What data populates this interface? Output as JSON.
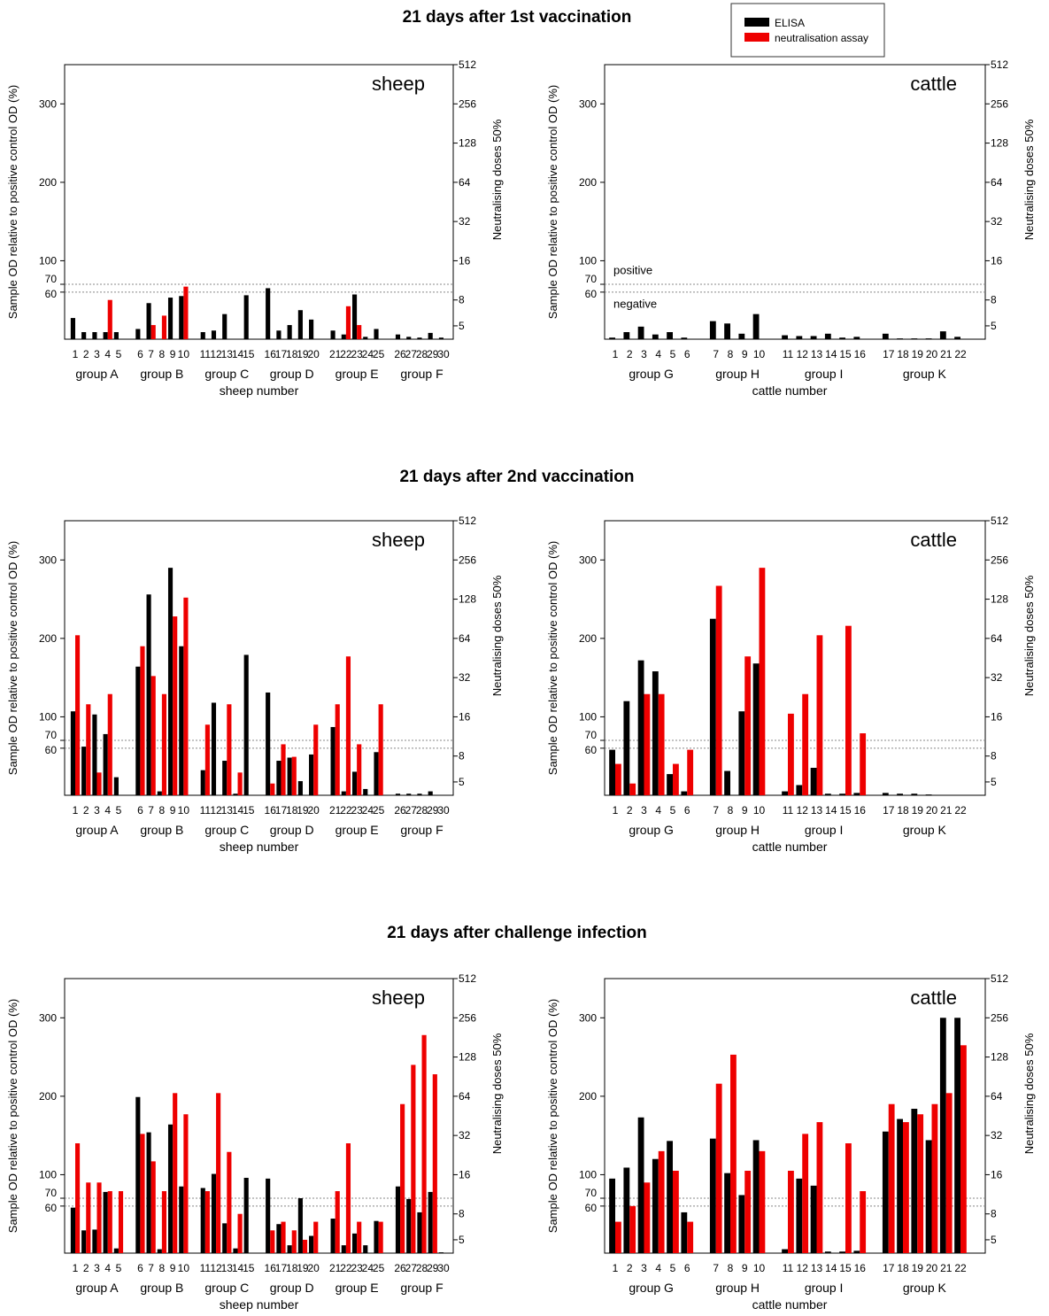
{
  "legend": {
    "items": [
      {
        "label": "ELISA",
        "color": "#000000"
      },
      {
        "label": "neutralisation assay",
        "color": "#ee0000"
      }
    ]
  },
  "rows": [
    {
      "title": "21 days after 1st vaccination"
    },
    {
      "title": "21 days after 2nd vaccination"
    },
    {
      "title": "21 days after challenge infection"
    }
  ],
  "axes": {
    "left_label": "Sample OD relative to positive control OD  (%)",
    "right_label": "Neutralising doses 50%",
    "left_ticks": [
      60,
      70,
      100,
      200,
      300
    ],
    "right_ticks": [
      "5",
      "8",
      "16",
      "32",
      "64",
      "128",
      "256",
      "512"
    ],
    "right_tick_values": [
      17,
      50,
      100,
      150,
      200,
      250,
      300,
      350
    ],
    "ylim": [
      0,
      350
    ],
    "dotted_lines": [
      60,
      70
    ],
    "zone_labels": {
      "positive": "positive",
      "negative": "negative"
    }
  },
  "sheep": {
    "animal": "sheep",
    "xlabel": "sheep number",
    "groups": [
      {
        "label": "group A",
        "animals": [
          1,
          2,
          3,
          4,
          5
        ]
      },
      {
        "label": "group B",
        "animals": [
          6,
          7,
          8,
          9,
          10
        ]
      },
      {
        "label": "group C",
        "animals": [
          11,
          12,
          13,
          14,
          15
        ]
      },
      {
        "label": "group D",
        "animals": [
          16,
          17,
          18,
          19,
          20
        ]
      },
      {
        "label": "group E",
        "animals": [
          21,
          22,
          23,
          24,
          25
        ]
      },
      {
        "label": "group F",
        "animals": [
          26,
          27,
          28,
          29,
          30
        ]
      }
    ]
  },
  "cattle": {
    "animal": "cattle",
    "xlabel": "cattle number",
    "groups": [
      {
        "label": "group G",
        "animals": [
          1,
          2,
          3,
          4,
          5,
          6
        ]
      },
      {
        "label": "group H",
        "animals": [
          7,
          8,
          9,
          10
        ]
      },
      {
        "label": "group I",
        "animals": [
          11,
          12,
          13,
          14,
          15,
          16
        ]
      },
      {
        "label": "group K",
        "animals": [
          17,
          18,
          19,
          20,
          21,
          22
        ]
      }
    ]
  },
  "chart_data": [
    {
      "type": "bar",
      "row": 0,
      "species": "sheep",
      "categories": [
        1,
        2,
        3,
        4,
        5,
        6,
        7,
        8,
        9,
        10,
        11,
        12,
        13,
        14,
        15,
        16,
        17,
        18,
        19,
        20,
        21,
        22,
        23,
        24,
        25,
        26,
        27,
        28,
        29,
        30
      ],
      "series": [
        {
          "name": "ELISA",
          "values": [
            27,
            9,
            9,
            9,
            9,
            13,
            46,
            0,
            53,
            55,
            9,
            11,
            32,
            0,
            56,
            65,
            11,
            18,
            37,
            25,
            11,
            6,
            57,
            3,
            13,
            6,
            3,
            2,
            8,
            2
          ]
        },
        {
          "name": "neutralisation assay",
          "values": [
            0,
            0,
            0,
            50,
            0,
            0,
            18,
            30,
            0,
            67,
            0,
            0,
            0,
            0,
            0,
            0,
            0,
            0,
            0,
            0,
            0,
            42,
            18,
            0,
            0,
            0,
            0,
            0,
            0,
            0
          ]
        }
      ]
    },
    {
      "type": "bar",
      "row": 0,
      "species": "cattle",
      "categories": [
        1,
        2,
        3,
        4,
        5,
        6,
        7,
        8,
        9,
        10,
        11,
        12,
        13,
        14,
        15,
        16,
        17,
        18,
        19,
        20,
        21,
        22
      ],
      "series": [
        {
          "name": "ELISA",
          "values": [
            2,
            9,
            16,
            6,
            9,
            2,
            23,
            20,
            7,
            32,
            5,
            4,
            4,
            7,
            2,
            3,
            7,
            1,
            1,
            1,
            10,
            3
          ]
        },
        {
          "name": "neutralisation assay",
          "values": [
            0,
            0,
            0,
            0,
            0,
            0,
            0,
            0,
            0,
            0,
            0,
            0,
            0,
            0,
            0,
            0,
            0,
            0,
            0,
            0,
            0,
            0
          ]
        }
      ]
    },
    {
      "type": "bar",
      "row": 1,
      "species": "sheep",
      "categories": [
        1,
        2,
        3,
        4,
        5,
        6,
        7,
        8,
        9,
        10,
        11,
        12,
        13,
        14,
        15,
        16,
        17,
        18,
        19,
        20,
        21,
        22,
        23,
        24,
        25,
        26,
        27,
        28,
        29,
        30
      ],
      "series": [
        {
          "name": "ELISA",
          "values": [
            107,
            62,
            103,
            78,
            23,
            164,
            256,
            5,
            290,
            190,
            32,
            118,
            44,
            2,
            179,
            131,
            44,
            48,
            18,
            52,
            87,
            5,
            30,
            8,
            55,
            2,
            2,
            2,
            5,
            0
          ]
        },
        {
          "name": "neutralisation assay",
          "values": [
            204,
            116,
            29,
            129,
            0,
            190,
            152,
            129,
            228,
            252,
            90,
            0,
            116,
            29,
            0,
            15,
            65,
            49,
            0,
            90,
            116,
            177,
            65,
            0,
            116,
            0,
            0,
            0,
            0,
            0
          ]
        }
      ]
    },
    {
      "type": "bar",
      "row": 1,
      "species": "cattle",
      "categories": [
        1,
        2,
        3,
        4,
        5,
        6,
        7,
        8,
        9,
        10,
        11,
        12,
        13,
        14,
        15,
        16,
        17,
        18,
        19,
        20,
        21,
        22
      ],
      "series": [
        {
          "name": "ELISA",
          "values": [
            58,
            120,
            172,
            158,
            27,
            5,
            225,
            31,
            107,
            168,
            5,
            13,
            35,
            2,
            2,
            3,
            3,
            2,
            2,
            1,
            0,
            0
          ]
        },
        {
          "name": "neutralisation assay",
          "values": [
            40,
            15,
            129,
            129,
            40,
            58,
            267,
            0,
            177,
            290,
            104,
            129,
            204,
            0,
            216,
            79,
            0,
            0,
            0,
            0,
            0,
            0
          ]
        }
      ]
    },
    {
      "type": "bar",
      "row": 2,
      "species": "sheep",
      "categories": [
        1,
        2,
        3,
        4,
        5,
        6,
        7,
        8,
        9,
        10,
        11,
        12,
        13,
        14,
        15,
        16,
        17,
        18,
        19,
        20,
        21,
        22,
        23,
        24,
        25,
        26,
        27,
        28,
        29,
        30
      ],
      "series": [
        {
          "name": "ELISA",
          "values": [
            58,
            29,
            30,
            78,
            6,
            199,
            154,
            5,
            164,
            85,
            83,
            101,
            38,
            6,
            96,
            95,
            37,
            10,
            70,
            22,
            44,
            10,
            25,
            10,
            41,
            85,
            69,
            52,
            78,
            1
          ]
        },
        {
          "name": "neutralisation assay",
          "values": [
            140,
            90,
            90,
            79,
            79,
            152,
            117,
            79,
            204,
            177,
            79,
            204,
            129,
            50,
            0,
            29,
            40,
            29,
            17,
            40,
            79,
            140,
            40,
            0,
            40,
            190,
            240,
            278,
            228,
            0
          ]
        }
      ]
    },
    {
      "type": "bar",
      "row": 2,
      "species": "cattle",
      "categories": [
        1,
        2,
        3,
        4,
        5,
        6,
        7,
        8,
        9,
        10,
        11,
        12,
        13,
        14,
        15,
        16,
        17,
        18,
        19,
        20,
        21,
        22
      ],
      "series": [
        {
          "name": "ELISA",
          "values": [
            95,
            109,
            173,
            120,
            143,
            52,
            146,
            102,
            74,
            144,
            5,
            95,
            86,
            2,
            2,
            3,
            155,
            171,
            184,
            144,
            300,
            300
          ]
        },
        {
          "name": "neutralisation assay",
          "values": [
            40,
            60,
            90,
            130,
            105,
            40,
            216,
            253,
            105,
            130,
            105,
            152,
            167,
            0,
            140,
            79,
            190,
            167,
            177,
            190,
            204,
            265
          ]
        }
      ]
    }
  ]
}
